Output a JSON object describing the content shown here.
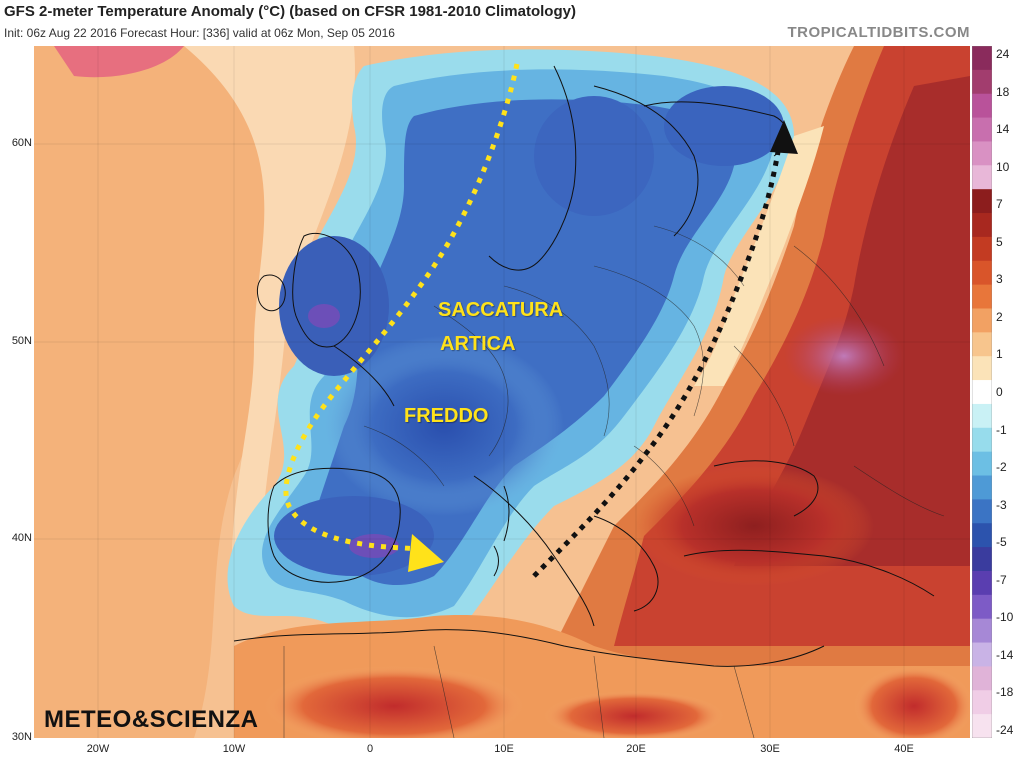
{
  "header": {
    "title": "GFS 2-meter Temperature Anomaly (°C) (based on CFSR 1981-2010 Climatology)",
    "subtitle": "Init: 06z Aug 22 2016   Forecast Hour: [336]   valid at 06z Mon, Sep 05 2016",
    "brand": "TROPICALTIDBITS.COM"
  },
  "map": {
    "latitude_labels": [
      "60N",
      "50N",
      "40N",
      "30N"
    ],
    "longitude_labels": [
      "20W",
      "10W",
      "0",
      "10E",
      "20E",
      "30E",
      "40E"
    ],
    "annotations": {
      "line1": "SACCATURA",
      "line2": "ARTICA",
      "cold": "FREDDO"
    },
    "arrow_colors": {
      "cold_flow": "#ffe21a",
      "warm_flow": "#111111"
    }
  },
  "colorbar": {
    "labels": [
      "24",
      "18",
      "14",
      "10",
      "7",
      "5",
      "3",
      "2",
      "1",
      "0",
      "-1",
      "-2",
      "-3",
      "-5",
      "-7",
      "-10",
      "-14",
      "-18",
      "-24"
    ],
    "colors": [
      "#8a2b5c",
      "#a23d6e",
      "#b9529a",
      "#c86fae",
      "#d991c3",
      "#e8b7d8",
      "#8c1d1d",
      "#a8281f",
      "#c33b22",
      "#d9552a",
      "#e8763a",
      "#f2a163",
      "#f7c58d",
      "#fbe3b8",
      "#ffffff",
      "#c9f1f5",
      "#97dcec",
      "#6cbfe4",
      "#4e9ad6",
      "#3b74c4",
      "#2c53ad",
      "#3a3c9e",
      "#5a3eb0",
      "#7d5bc6",
      "#a688d6",
      "#c9b3e6",
      "#e0b3d8",
      "#f0cde6",
      "#f7e2ef"
    ]
  },
  "watermark": "METEO&SCIENZA"
}
